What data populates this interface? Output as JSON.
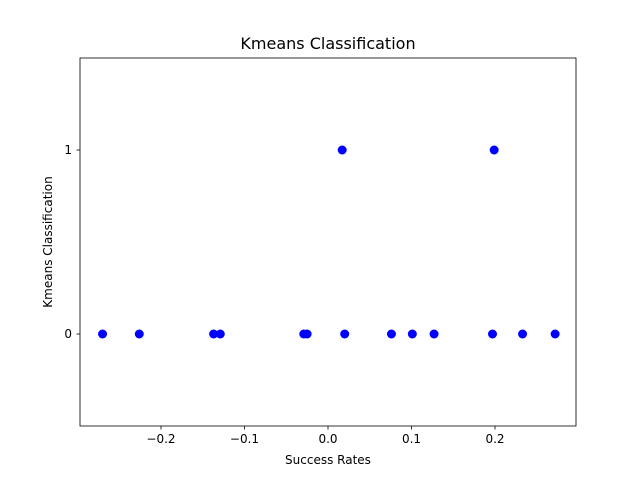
{
  "chart_data": {
    "type": "scatter",
    "title": "Kmeans Classification",
    "xlabel": "Success Rates",
    "ylabel": "Kmeans Classification",
    "xlim": [
      -0.297,
      0.297
    ],
    "ylim": [
      -0.5,
      1.5
    ],
    "x_ticks": [
      -0.2,
      -0.1,
      0.0,
      0.1,
      0.2
    ],
    "x_tick_labels": [
      "−0.2",
      "−0.1",
      "0.0",
      "0.1",
      "0.2"
    ],
    "y_ticks": [
      0,
      1
    ],
    "y_tick_labels": [
      "0",
      "1"
    ],
    "grid": false,
    "marker_color": "#0000ff",
    "points": [
      {
        "x": -0.27,
        "y": 0
      },
      {
        "x": -0.226,
        "y": 0
      },
      {
        "x": -0.137,
        "y": 0
      },
      {
        "x": -0.129,
        "y": 0
      },
      {
        "x": -0.029,
        "y": 0
      },
      {
        "x": -0.025,
        "y": 0
      },
      {
        "x": 0.017,
        "y": 1
      },
      {
        "x": 0.02,
        "y": 0
      },
      {
        "x": 0.076,
        "y": 0
      },
      {
        "x": 0.101,
        "y": 0
      },
      {
        "x": 0.127,
        "y": 0
      },
      {
        "x": 0.197,
        "y": 0
      },
      {
        "x": 0.199,
        "y": 1
      },
      {
        "x": 0.233,
        "y": 0
      },
      {
        "x": 0.272,
        "y": 0
      }
    ]
  }
}
